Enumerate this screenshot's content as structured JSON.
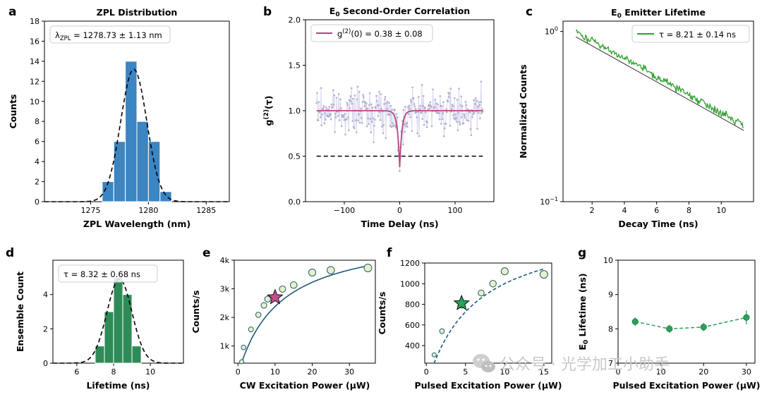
{
  "figure": {
    "watermark_text": "公众号 · 光学加工小助手",
    "watermark_icon": "wechat-icon"
  },
  "chart_data": [
    {
      "id": "a",
      "letter": "a",
      "type": "bar",
      "title": "ZPL Distribution",
      "xlabel": "ZPL Wavelength (nm)",
      "ylabel": "Counts",
      "xlim": [
        1271,
        1287
      ],
      "ylim": [
        0,
        18
      ],
      "xticks": [
        1275,
        1280,
        1285
      ],
      "yticks": [
        0,
        2,
        4,
        6,
        8,
        10,
        12,
        14,
        16,
        18
      ],
      "bin_width": 1,
      "bins": [
        1276.5,
        1277.5,
        1278.5,
        1279.5,
        1280.5,
        1281.5
      ],
      "values": [
        2,
        6,
        14,
        8,
        6,
        1
      ],
      "fit": {
        "type": "gaussian",
        "mean": 1278.73,
        "sigma": 1.13,
        "amplitude": 13.2
      },
      "legend": "λZPL = 1278.73 ± 1.13 nm",
      "color": "#3a85c2"
    },
    {
      "id": "b",
      "letter": "b",
      "type": "scatter",
      "title": "E0 Second-Order Correlation",
      "xlabel": "Time Delay (ns)",
      "ylabel": "g(2)(τ)",
      "xlim": [
        -170,
        170
      ],
      "ylim": [
        0,
        2
      ],
      "xticks": [
        -100,
        0,
        100
      ],
      "yticks": [
        0.0,
        0.5,
        1.0,
        1.5,
        2.0
      ],
      "data_range": [
        -150,
        150
      ],
      "baseline": 1.0,
      "noise_band": [
        0.55,
        1.55
      ],
      "dip_value": 0.38,
      "dip_width_ns": 4,
      "threshold_line": 0.5,
      "legend": "g(2)(0) = 0.38 ± 0.08",
      "fit_color": "#b6467f",
      "point_color": "#a8a8c0"
    },
    {
      "id": "c",
      "letter": "c",
      "type": "line",
      "title": "E0 Emitter Lifetime",
      "xlabel": "Decay Time (ns)",
      "ylabel": "Normalized Counts",
      "xlim": [
        0.2,
        12
      ],
      "ylim": [
        0.1,
        1.15
      ],
      "yscale": "log",
      "xticks": [
        2,
        4,
        6,
        8,
        10
      ],
      "yticks": [
        0.1,
        1.0
      ],
      "data_range": [
        1,
        11.4
      ],
      "lifetime_ns": 8.21,
      "legend": "τ = 8.21 ± 0.14 ns",
      "color": "#2ca02c"
    },
    {
      "id": "d",
      "letter": "d",
      "type": "bar",
      "title": "",
      "xlabel": "Lifetime (ns)",
      "ylabel": "Ensemble Count",
      "xlim": [
        4.7,
        11.8
      ],
      "ylim": [
        0,
        6
      ],
      "xticks": [
        6,
        8,
        10
      ],
      "yticks": [
        0,
        2,
        4
      ],
      "bin_width": 0.5,
      "bins": [
        7.25,
        7.75,
        8.25,
        8.75,
        9.25
      ],
      "values": [
        1,
        3,
        5,
        4,
        1
      ],
      "fit": {
        "type": "gaussian",
        "mean": 8.32,
        "sigma": 0.68,
        "amplitude": 4.9
      },
      "legend": "τ = 8.32 ± 0.68 ns",
      "color": "#2e8b57"
    },
    {
      "id": "e",
      "letter": "e",
      "type": "scatter",
      "title": "",
      "xlabel": "CW Excitation Power (μW)",
      "ylabel": "Counts/s",
      "xlim": [
        -1,
        37
      ],
      "ylim": [
        400,
        4000
      ],
      "xticks": [
        0,
        10,
        20,
        30
      ],
      "yticks": [
        1000,
        2000,
        3000,
        4000
      ],
      "ytick_labels": [
        "1k",
        "2k",
        "3k",
        "4k"
      ],
      "x": [
        1,
        1.5,
        3.5,
        5.5,
        7,
        8,
        12,
        15,
        20,
        25,
        35
      ],
      "y": [
        450,
        950,
        1580,
        2090,
        2420,
        2640,
        2990,
        3130,
        3570,
        3650,
        3730
      ],
      "saturation_fit": {
        "I_sat": 5000,
        "P_sat": 11
      },
      "star": {
        "x": 10,
        "y": 2700,
        "color": "#c0508b"
      },
      "line_color": "#1d5a73",
      "marker_fill": "#e8f0c8"
    },
    {
      "id": "f",
      "letter": "f",
      "type": "scatter",
      "title": "",
      "xlabel": "Pulsed Excitation Power (μW)",
      "ylabel": "Counts/s",
      "xlim": [
        -0.2,
        16
      ],
      "ylim": [
        230,
        1200
      ],
      "xticks": [
        0,
        5,
        10,
        15
      ],
      "yticks": [
        400,
        600,
        800,
        1000,
        1200
      ],
      "x": [
        1,
        2,
        4.5,
        7,
        8.5,
        10,
        15
      ],
      "y": [
        310,
        540,
        790,
        910,
        1000,
        1120,
        1090
      ],
      "saturation_fit": {
        "I_sat": 1600,
        "P_sat": 6
      },
      "star": {
        "x": 4.5,
        "y": 810,
        "color": "#2ca05a"
      },
      "line_color": "#1d5a73",
      "marker_fill": "#e8f0c8"
    },
    {
      "id": "g",
      "letter": "g",
      "type": "line",
      "title": "",
      "xlabel": "Pulsed Excitation Power (μW)",
      "ylabel": "E0 Lifetime (ns)",
      "xlim": [
        0,
        32
      ],
      "ylim": [
        7,
        10
      ],
      "xticks": [
        0,
        10,
        20,
        30
      ],
      "yticks": [
        7,
        8,
        9,
        10
      ],
      "x": [
        4,
        12,
        20,
        30
      ],
      "y": [
        8.21,
        8.0,
        8.05,
        8.33
      ],
      "err": [
        0.12,
        0.12,
        0.12,
        0.2
      ],
      "color": "#2ca05a"
    }
  ]
}
